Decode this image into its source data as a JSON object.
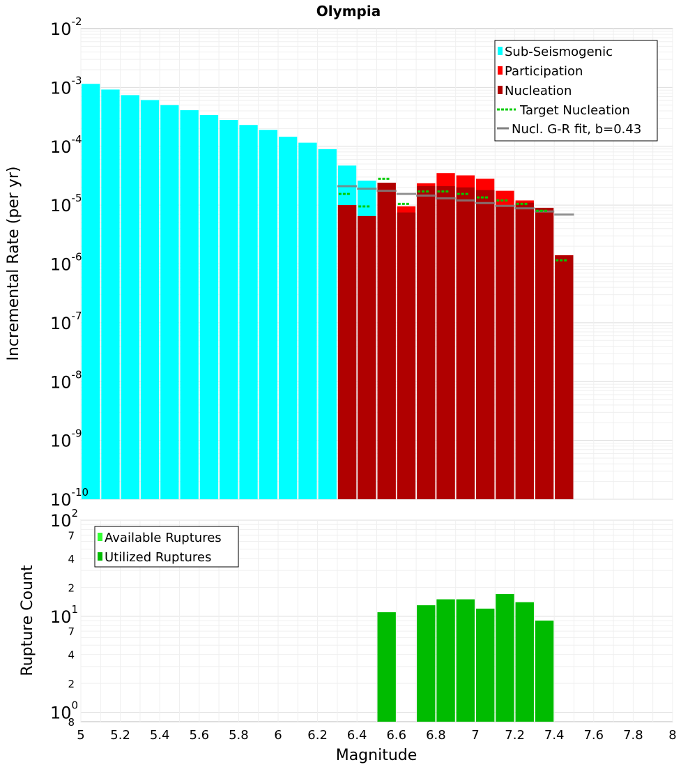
{
  "chart_data": [
    {
      "type": "bar",
      "title": "Olympia",
      "xlabel": "",
      "ylabel": "Incremental Rate (per yr)",
      "y_scale": "log",
      "xlim": [
        5,
        8
      ],
      "ylim": [
        1e-10,
        0.01
      ],
      "y_tick_labels": [
        {
          "base": "10",
          "exp": "-2"
        },
        {
          "base": "10",
          "exp": "-3"
        },
        {
          "base": "10",
          "exp": "-4"
        },
        {
          "base": "10",
          "exp": "-5"
        },
        {
          "base": "10",
          "exp": "-6"
        },
        {
          "base": "10",
          "exp": "-7"
        },
        {
          "base": "10",
          "exp": "-8"
        },
        {
          "base": "10",
          "exp": "-9"
        },
        {
          "base": "10",
          "exp": "-10"
        }
      ],
      "grid": true,
      "legend_position": "top-right",
      "series": [
        {
          "name": "Sub-Seismogenic",
          "color": "#00FFFF",
          "x": [
            5.05,
            5.15,
            5.25,
            5.35,
            5.45,
            5.55,
            5.65,
            5.75,
            5.85,
            5.95,
            6.05,
            6.15,
            6.25,
            6.35,
            6.45
          ],
          "y": [
            0.00115,
            0.00092,
            0.00074,
            0.00061,
            0.0005,
            0.00041,
            0.00034,
            0.00028,
            0.00023,
            0.00019,
            0.000145,
            0.000115,
            8.9e-05,
            4.7e-05,
            2.6e-05
          ]
        },
        {
          "name": "Participation",
          "color": "#FF0000",
          "x": [
            6.35,
            6.45,
            6.55,
            6.65,
            6.75,
            6.85,
            6.95,
            7.05,
            7.15,
            7.25,
            7.35,
            7.45
          ],
          "y": [
            1e-05,
            6.5e-06,
            2.4e-05,
            9.5e-06,
            2.35e-05,
            3.5e-05,
            3.2e-05,
            2.8e-05,
            1.75e-05,
            1.2e-05,
            9e-06,
            1.4e-06
          ]
        },
        {
          "name": "Nucleation",
          "color": "#B00000",
          "x": [
            6.35,
            6.45,
            6.55,
            6.65,
            6.75,
            6.85,
            6.95,
            7.05,
            7.15,
            7.25,
            7.35,
            7.45
          ],
          "y": [
            1e-05,
            6.5e-06,
            2.4e-05,
            7.5e-06,
            2.1e-05,
            2.1e-05,
            2e-05,
            1.8e-05,
            1e-05,
            1.1e-05,
            9e-06,
            1.4e-06
          ]
        },
        {
          "name": "Target Nucleation",
          "color": "#00CC00",
          "x": [
            6.35,
            6.45,
            6.55,
            6.65,
            6.75,
            6.85,
            6.95,
            7.05,
            7.15,
            7.25,
            7.35,
            7.45
          ],
          "y": [
            1.55e-05,
            9.5e-06,
            2.8e-05,
            1.05e-05,
            1.7e-05,
            1.7e-05,
            1.55e-05,
            1.35e-05,
            1.2e-05,
            1.05e-05,
            8e-06,
            1.15e-06
          ]
        },
        {
          "name": "Nucl. G-R fit, b=0.43",
          "color": "#808080",
          "x": [
            6.35,
            6.45,
            6.55,
            6.65,
            6.75,
            6.85,
            6.95,
            7.05,
            7.15,
            7.25,
            7.35,
            7.45
          ],
          "y": [
            2.1e-05,
            1.9e-05,
            1.75e-05,
            1.55e-05,
            1.45e-05,
            1.3e-05,
            1.2e-05,
            1.08e-05,
            9.7e-06,
            8.8e-06,
            7.8e-06,
            6.9e-06
          ]
        }
      ]
    },
    {
      "type": "bar",
      "title": "",
      "xlabel": "Magnitude",
      "ylabel": "Rupture Count",
      "y_scale": "log",
      "xlim": [
        5,
        8
      ],
      "ylim": [
        0.8,
        100
      ],
      "x_tick_labels": [
        "5",
        "5.2",
        "5.4",
        "5.6",
        "5.8",
        "6",
        "6.2",
        "6.4",
        "6.6",
        "6.8",
        "7",
        "7.2",
        "7.4",
        "7.6",
        "7.8",
        "8"
      ],
      "y_tick_labels": [
        {
          "base": "10",
          "exp": "2"
        },
        {
          "base": "10",
          "exp": "1"
        },
        {
          "base": "10",
          "exp": "0"
        }
      ],
      "y_minor_labels": [
        "7",
        "4",
        "2",
        "7",
        "4",
        "2",
        "8"
      ],
      "grid": true,
      "legend_position": "top-left",
      "series": [
        {
          "name": "Available Ruptures",
          "color": "#33FF33",
          "x": [
            6.55,
            6.75,
            6.85,
            6.95,
            7.05,
            7.15,
            7.25,
            7.35
          ],
          "y": [
            11,
            13,
            15,
            15,
            12,
            17,
            14,
            9
          ]
        },
        {
          "name": "Utilized Ruptures",
          "color": "#00BB00",
          "x": [
            6.55,
            6.75,
            6.85,
            6.95,
            7.05,
            7.15,
            7.25,
            7.35
          ],
          "y": [
            11,
            13,
            15,
            15,
            12,
            17,
            14,
            9
          ]
        }
      ]
    }
  ]
}
